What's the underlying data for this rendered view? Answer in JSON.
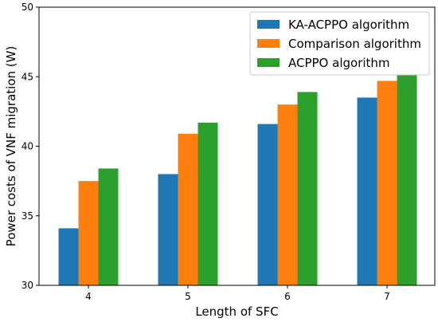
{
  "chart_data": {
    "type": "bar",
    "title": "",
    "xlabel": "Length of SFC",
    "ylabel": "Power costs of VNF migration (W)",
    "categories": [
      "4",
      "5",
      "6",
      "7"
    ],
    "ylim": [
      30,
      50
    ],
    "yticks": [
      30,
      35,
      40,
      45,
      50
    ],
    "grid": false,
    "legend_position": "top-right",
    "series": [
      {
        "name": "KA-ACPPO algorithm",
        "color": "#1f77b4",
        "values": [
          34.1,
          38.0,
          41.6,
          43.5
        ]
      },
      {
        "name": "Comparison algorithm",
        "color": "#ff7f0e",
        "values": [
          37.5,
          40.9,
          43.0,
          44.7
        ]
      },
      {
        "name": "ACPPO algorithm",
        "color": "#2ca02c",
        "values": [
          38.4,
          41.7,
          43.9,
          45.1
        ]
      }
    ]
  }
}
